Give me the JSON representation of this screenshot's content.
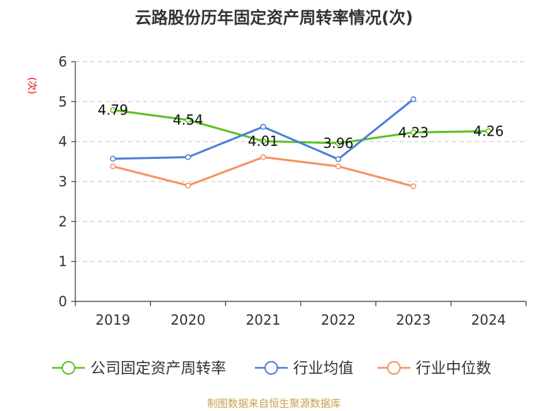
{
  "title": "云路股份历年固定资产周转率情况(次)",
  "source": "制图数据来自恒生聚源数据库",
  "colors": {
    "axis": "#333333",
    "grid": "#cccccc",
    "ylabel": "#e60000"
  },
  "chart_data": {
    "type": "line",
    "title": "云路股份历年固定资产周转率情况(次)",
    "ylabel": "(次)",
    "xlabel": "",
    "categories": [
      "2019",
      "2020",
      "2021",
      "2022",
      "2023",
      "2024"
    ],
    "ylim": [
      0,
      6
    ],
    "yticks": [
      0,
      1,
      2,
      3,
      4,
      5,
      6
    ],
    "grid": true,
    "legend_position": "bottom",
    "series": [
      {
        "name": "公司固定资产周转率",
        "color": "#5cc220",
        "values": [
          4.79,
          4.54,
          4.01,
          3.96,
          4.23,
          4.26
        ],
        "labels": [
          "4.79",
          "4.54",
          "4.01",
          "3.96",
          "4.23",
          "4.26"
        ],
        "show_labels": true
      },
      {
        "name": "行业均值",
        "color": "#4a7fd8",
        "values": [
          3.57,
          3.61,
          4.37,
          3.56,
          5.06,
          null
        ],
        "show_labels": false
      },
      {
        "name": "行业中位数",
        "color": "#f79061",
        "values": [
          3.38,
          2.9,
          3.61,
          3.38,
          2.88,
          null
        ],
        "show_labels": false
      }
    ]
  }
}
